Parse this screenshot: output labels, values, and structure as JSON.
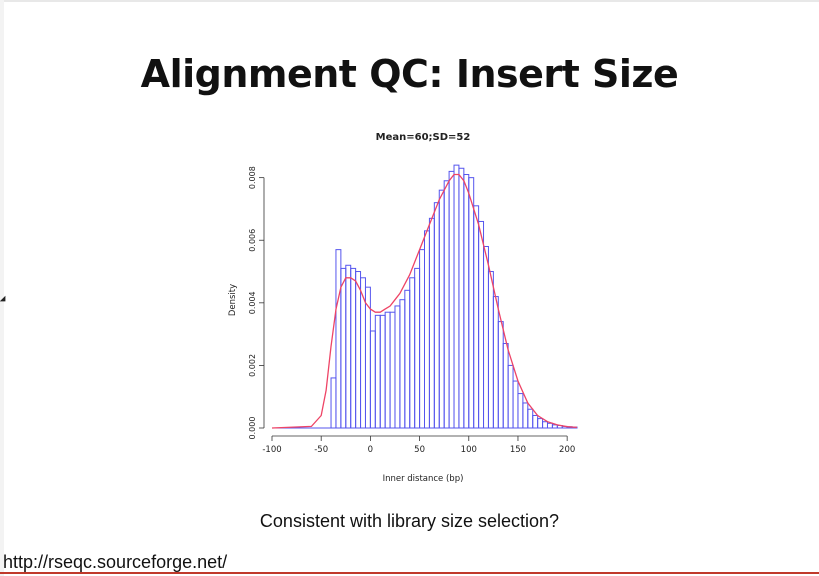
{
  "slide": {
    "title": "Alignment QC: Insert Size",
    "caption": "Consistent with library size selection?",
    "source_url": "http://rseqc.sourceforge.net/"
  },
  "colors": {
    "histogram": "#5555ee",
    "density_curve": "#ee4466",
    "axis": "#333333",
    "bottom_rule": "#c0392b"
  },
  "chart_data": {
    "type": "bar",
    "title": "Mean=60;SD=52",
    "xlabel": "Inner distance (bp)",
    "ylabel": "Density",
    "xlim": [
      -100,
      210
    ],
    "ylim": [
      0,
      0.0085
    ],
    "xticks": [
      -100,
      -50,
      0,
      50,
      100,
      150,
      200
    ],
    "xtick_labels": [
      "-100",
      "-50",
      "0",
      "50",
      "100",
      "150",
      "200"
    ],
    "yticks": [
      0.0,
      0.002,
      0.004,
      0.006,
      0.008
    ],
    "ytick_labels": [
      "0.000",
      "0.002",
      "0.004",
      "0.006",
      "0.008"
    ],
    "grid": false,
    "bin_width": 5,
    "bin_starts": [
      -40,
      -35,
      -30,
      -25,
      -20,
      -15,
      -10,
      -5,
      0,
      5,
      10,
      15,
      20,
      25,
      30,
      35,
      40,
      45,
      50,
      55,
      60,
      65,
      70,
      75,
      80,
      85,
      90,
      95,
      100,
      105,
      110,
      115,
      120,
      125,
      130,
      135,
      140,
      145,
      150,
      155,
      160,
      165,
      170,
      175,
      180,
      185,
      190,
      195,
      200,
      205
    ],
    "histogram": [
      0.0016,
      0.0057,
      0.0051,
      0.0052,
      0.0051,
      0.005,
      0.0048,
      0.0045,
      0.0031,
      0.0036,
      0.0036,
      0.0037,
      0.0037,
      0.0039,
      0.0041,
      0.0044,
      0.0048,
      0.0051,
      0.0057,
      0.0063,
      0.0067,
      0.0072,
      0.0076,
      0.0079,
      0.0082,
      0.0084,
      0.0083,
      0.0081,
      0.008,
      0.0071,
      0.0066,
      0.0058,
      0.005,
      0.0042,
      0.0034,
      0.0027,
      0.002,
      0.0015,
      0.0011,
      0.0008,
      0.0006,
      0.0004,
      0.0003,
      0.0002,
      0.00015,
      0.0001,
      8e-05,
      5e-05,
      4e-05,
      3e-05
    ],
    "density_curve": {
      "x": [
        -100,
        -60,
        -50,
        -45,
        -40,
        -35,
        -30,
        -25,
        -20,
        -15,
        -10,
        -5,
        0,
        5,
        10,
        15,
        20,
        25,
        30,
        40,
        50,
        60,
        70,
        80,
        85,
        90,
        95,
        100,
        110,
        120,
        130,
        140,
        150,
        160,
        170,
        180,
        190,
        200,
        210
      ],
      "y": [
        0.0,
        5e-05,
        0.0004,
        0.0012,
        0.0026,
        0.0038,
        0.0045,
        0.0048,
        0.0048,
        0.0047,
        0.0044,
        0.004,
        0.0038,
        0.0037,
        0.0037,
        0.0038,
        0.0039,
        0.0041,
        0.0043,
        0.0049,
        0.0057,
        0.0065,
        0.0073,
        0.0079,
        0.0081,
        0.0081,
        0.0079,
        0.0075,
        0.0065,
        0.0052,
        0.0038,
        0.0025,
        0.0015,
        0.0008,
        0.0004,
        0.0002,
        0.0001,
        4e-05,
        2e-05
      ]
    }
  }
}
